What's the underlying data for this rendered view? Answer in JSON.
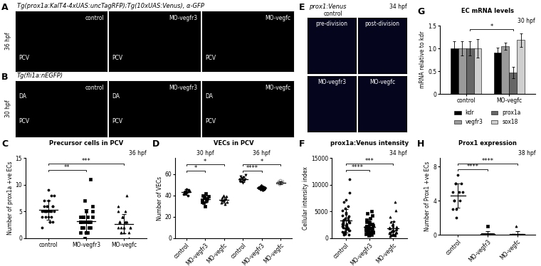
{
  "image_panels": [
    {
      "panel": "A",
      "header": "Tg(prox1a:KalT4-4xUAS:uncTagRFP);Tg(10xUAS:Venus), α-GFP",
      "time": "36 hpf",
      "images": [
        {
          "label": "control",
          "vessels": [
            "PCV"
          ]
        },
        {
          "label": "MO-vegfr3",
          "vessels": [
            "PCV"
          ]
        },
        {
          "label": "MO-vegfc",
          "vessels": [
            "PCV"
          ]
        }
      ]
    },
    {
      "panel": "B",
      "header": "Tg(fli1a:nEGFP)",
      "time": "30 hpf",
      "images": [
        {
          "label": "control",
          "vessels": [
            "DA",
            "PCV"
          ]
        },
        {
          "label": "MO-vegfr3",
          "vessels": [
            "DA",
            "PCV"
          ]
        },
        {
          "label": "MO-vegfc",
          "vessels": [
            "DA",
            "PCV"
          ]
        }
      ]
    },
    {
      "panel": "E",
      "header": "prox1:Venus",
      "time": "34 hpf",
      "group_label": "control",
      "images": [
        {
          "caption": "pre-division"
        },
        {
          "caption": "post-division"
        },
        {
          "label": "MO-vegfr3"
        },
        {
          "label": "MO-vegfc"
        }
      ]
    }
  ],
  "chart_data": [
    {
      "panel": "C",
      "type": "dot",
      "title": "Precursor cells in PCV",
      "ylabel": "Number of prox1a +ve ECs",
      "annotation": "36 hpf",
      "categories": [
        "control",
        "MO-vegfr3",
        "MO-vegfc"
      ],
      "groups": [
        {
          "values": [
            5,
            6,
            4,
            5,
            7,
            3,
            5,
            6,
            8,
            4,
            5,
            5,
            6,
            9,
            3,
            4,
            6,
            5,
            2,
            7,
            5,
            6,
            4,
            5,
            8,
            3
          ],
          "mean": 5.3,
          "error": 1.8,
          "marker": "circle",
          "color": "#000000"
        },
        {
          "values": [
            3,
            2,
            4,
            3,
            5,
            1,
            3,
            2,
            6,
            4,
            3,
            2,
            0,
            1,
            4,
            3,
            11,
            5,
            3,
            2,
            4,
            7,
            1,
            3,
            2,
            3,
            4,
            1
          ],
          "mean": 3.2,
          "error": 2.2,
          "marker": "square",
          "color": "#000000"
        },
        {
          "values": [
            2,
            3,
            1,
            4,
            2,
            5,
            3,
            0,
            2,
            6,
            3,
            1,
            4,
            2,
            3,
            8,
            1,
            2,
            5,
            3,
            2,
            4,
            1,
            3
          ],
          "mean": 2.7,
          "error": 1.8,
          "marker": "triangle_up",
          "color": "#000000"
        }
      ],
      "ylim": [
        0,
        15
      ],
      "yticks": [
        0,
        5,
        10,
        15
      ],
      "significance": [
        {
          "pair": [
            0,
            1
          ],
          "label": "**"
        },
        {
          "pair": [
            0,
            2
          ],
          "label": "***"
        }
      ]
    },
    {
      "panel": "D",
      "type": "dot",
      "title": "VECs in PCV",
      "ylabel": "Number of VECs",
      "categories": [
        "control",
        "MO-vegfr3",
        "MO-vegfc",
        "control",
        "MO-vegfr3",
        "MO-vegfc"
      ],
      "category_groups": [
        {
          "label": "30 hpf",
          "members": [
            0,
            1,
            2
          ]
        },
        {
          "label": "36 hpf",
          "members": [
            3,
            4,
            5
          ]
        }
      ],
      "groups": [
        {
          "values": [
            41,
            43,
            44,
            42,
            46,
            43,
            40,
            45,
            44
          ],
          "mean": 43,
          "error": 2.5,
          "marker": "circle",
          "color": "#000000"
        },
        {
          "values": [
            36,
            40,
            33,
            38,
            30,
            42,
            35,
            37,
            39,
            34
          ],
          "mean": 36.5,
          "error": 3.5,
          "marker": "square",
          "color": "#000000"
        },
        {
          "values": [
            33,
            38,
            35,
            40,
            36,
            32,
            37,
            39,
            34,
            36
          ],
          "mean": 36,
          "error": 2.5,
          "marker": "triangle_up",
          "color": "#000000"
        },
        {
          "values": [
            55,
            58,
            53,
            56,
            52,
            57,
            54,
            55,
            59,
            53
          ],
          "mean": 55,
          "error": 2.3,
          "marker": "triangle_down",
          "color": "#000000"
        },
        {
          "values": [
            47,
            48,
            46,
            49,
            47,
            45,
            48,
            46,
            47
          ],
          "mean": 47,
          "error": 1.2,
          "marker": "diamond",
          "color": "#000000"
        },
        {
          "values": [
            51,
            52,
            53,
            50,
            54,
            52,
            51,
            53
          ],
          "mean": 52,
          "error": 1.3,
          "marker": "circle_open",
          "color": "#808080"
        }
      ],
      "ylim": [
        0,
        75
      ],
      "yticks": [
        0,
        20,
        40,
        60
      ],
      "significance": [
        {
          "pair": [
            0,
            1
          ],
          "label": "*"
        },
        {
          "pair": [
            0,
            2
          ],
          "label": "*"
        },
        {
          "pair": [
            3,
            4
          ],
          "label": "****"
        },
        {
          "pair": [
            3,
            5
          ],
          "label": "*"
        }
      ]
    },
    {
      "panel": "F",
      "type": "dot",
      "title": "prox1a:Venus intensity",
      "ylabel": "Cellular intensity index",
      "annotation": "34 hpf",
      "categories": [
        "control",
        "MO-vegfr3",
        "MO-vegfc"
      ],
      "groups": [
        {
          "values": [
            1200,
            2500,
            3400,
            800,
            4500,
            2100,
            6000,
            3100,
            1500,
            5200,
            2800,
            900,
            3700,
            7200,
            2300,
            1800,
            4100,
            11000,
            2600,
            3300,
            600,
            1900,
            4800,
            2700,
            3500,
            1400,
            8500,
            2200,
            3000,
            1100,
            5600,
            2400,
            1700,
            3900,
            700,
            2900,
            4300,
            2000,
            6800,
            1300
          ],
          "mean": 3300,
          "error": 2200,
          "marker": "circle",
          "color": "#000000"
        },
        {
          "values": [
            1500,
            2200,
            900,
            3100,
            1800,
            2600,
            700,
            4200,
            1200,
            2000,
            3500,
            1600,
            500,
            2800,
            1100,
            5000,
            1900,
            2400,
            800,
            3000,
            1400,
            2100,
            600,
            3700,
            1300,
            2700,
            1000,
            1700,
            2300,
            4600
          ],
          "mean": 2100,
          "error": 1150,
          "marker": "square",
          "color": "#000000"
        },
        {
          "values": [
            1000,
            1800,
            700,
            2500,
            1300,
            3200,
            500,
            1600,
            2100,
            900,
            4000,
            1200,
            600,
            2700,
            1500,
            800,
            5200,
            1100,
            1900,
            400,
            3000,
            1400,
            2300,
            700,
            6800,
            1000,
            1700,
            2000
          ],
          "mean": 1800,
          "error": 1400,
          "marker": "triangle_up",
          "color": "#000000"
        }
      ],
      "ylim": [
        0,
        15000
      ],
      "yticks": [
        0,
        5000,
        10000,
        15000
      ],
      "significance": [
        {
          "pair": [
            0,
            1
          ],
          "label": "****"
        },
        {
          "pair": [
            0,
            2
          ],
          "label": "***"
        }
      ]
    },
    {
      "panel": "G",
      "type": "bar",
      "title": "EC mRNA levels",
      "ylabel": "mRNA relative to kdr",
      "annotation": "30 hpf",
      "categories": [
        "control",
        "MO-vegfc"
      ],
      "series": [
        {
          "name": "kdr",
          "color": "#000000",
          "values": [
            1,
            0.9
          ],
          "error": [
            0.15,
            0.12
          ]
        },
        {
          "name": "vegfr3",
          "color": "#9a9a9a",
          "values": [
            1,
            1.05
          ],
          "error": [
            0.15,
            0.08
          ]
        },
        {
          "name": "prox1a",
          "color": "#666666",
          "values": [
            1,
            0.47
          ],
          "error": [
            0.15,
            0.12
          ]
        },
        {
          "name": "sox18",
          "color": "#cfcfcf",
          "values": [
            1,
            1.18
          ],
          "error": [
            0.2,
            0.15
          ]
        }
      ],
      "ylim": [
        0,
        1.5
      ],
      "yticks": [
        0,
        0.5,
        {
          "value": 1,
          "label": "1.0"
        },
        1.5
      ],
      "legend": "bottom",
      "significance": [
        {
          "series": "prox1a",
          "pair": [
            0,
            1
          ],
          "label": "*"
        }
      ]
    },
    {
      "panel": "H",
      "type": "dot",
      "title": "Prox1 expression",
      "ylabel": "Number of Prox1 +ve ECs",
      "annotation": "38 hpf",
      "categories": [
        "control",
        "MO-vegfr3",
        "MO-vegfc"
      ],
      "groups": [
        {
          "values": [
            5,
            4,
            6,
            3,
            7,
            5,
            4,
            6,
            5,
            3,
            4,
            6,
            2
          ],
          "mean": 4.6,
          "error": 1.4,
          "marker": "circle",
          "color": "#000000"
        },
        {
          "values": [
            0,
            0,
            0,
            0,
            1,
            0,
            0,
            0,
            0,
            0,
            0,
            0
          ],
          "mean": 0.1,
          "error": 0.3,
          "marker": "square",
          "color": "#000000"
        },
        {
          "values": [
            0,
            0,
            0,
            1,
            0,
            0,
            0,
            0,
            0,
            0,
            0
          ],
          "mean": 0.1,
          "error": 0.3,
          "marker": "triangle_up",
          "color": "#000000"
        }
      ],
      "ylim": [
        0,
        9
      ],
      "yticks": [
        0,
        4,
        8
      ],
      "significance": [
        {
          "pair": [
            0,
            1
          ],
          "label": "****"
        },
        {
          "pair": [
            0,
            2
          ],
          "label": "****"
        }
      ]
    }
  ]
}
